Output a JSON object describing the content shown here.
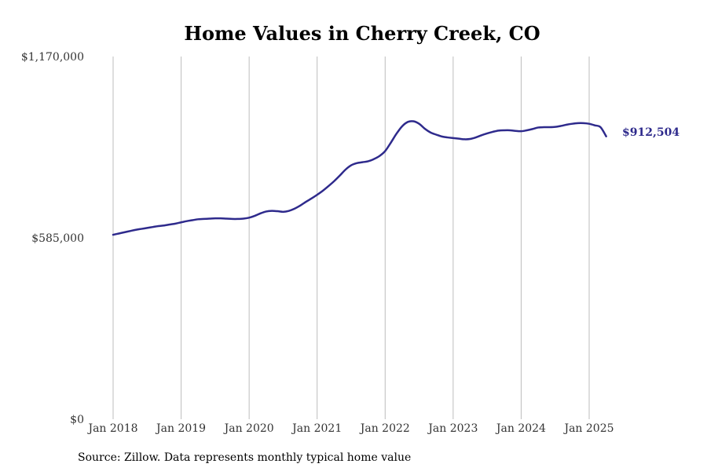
{
  "chart_data": {
    "type": "line",
    "title": "Home Values in Cherry Creek, CO",
    "xlabel": "",
    "ylabel": "",
    "x_start": "2018-01",
    "x_ticks": [
      {
        "date": "2018-01",
        "label": "Jan 2018"
      },
      {
        "date": "2019-01",
        "label": "Jan 2019"
      },
      {
        "date": "2020-01",
        "label": "Jan 2020"
      },
      {
        "date": "2021-01",
        "label": "Jan 2021"
      },
      {
        "date": "2022-01",
        "label": "Jan 2022"
      },
      {
        "date": "2023-01",
        "label": "Jan 2023"
      },
      {
        "date": "2024-01",
        "label": "Jan 2024"
      },
      {
        "date": "2025-01",
        "label": "Jan 2025"
      }
    ],
    "y_ticks": [
      {
        "value": 0,
        "label": "$0"
      },
      {
        "value": 585000,
        "label": "$585,000"
      },
      {
        "value": 1170000,
        "label": "$1,170,000"
      }
    ],
    "ylim": [
      0,
      1170000
    ],
    "xlim": [
      "2018-01",
      "2025-05"
    ],
    "grid": "vertical",
    "end_label": "$912,504",
    "series": [
      {
        "color": "#2e2a8c",
        "x": [
          "2018-01",
          "2018-02",
          "2018-03",
          "2018-04",
          "2018-05",
          "2018-06",
          "2018-07",
          "2018-08",
          "2018-09",
          "2018-10",
          "2018-11",
          "2018-12",
          "2019-01",
          "2019-02",
          "2019-03",
          "2019-04",
          "2019-05",
          "2019-06",
          "2019-07",
          "2019-08",
          "2019-09",
          "2019-10",
          "2019-11",
          "2019-12",
          "2020-01",
          "2020-02",
          "2020-03",
          "2020-04",
          "2020-05",
          "2020-06",
          "2020-07",
          "2020-08",
          "2020-09",
          "2020-10",
          "2020-11",
          "2020-12",
          "2021-01",
          "2021-02",
          "2021-03",
          "2021-04",
          "2021-05",
          "2021-06",
          "2021-07",
          "2021-08",
          "2021-09",
          "2021-10",
          "2021-11",
          "2021-12",
          "2022-01",
          "2022-02",
          "2022-03",
          "2022-04",
          "2022-05",
          "2022-06",
          "2022-07",
          "2022-08",
          "2022-09",
          "2022-10",
          "2022-11",
          "2022-12",
          "2023-01",
          "2023-02",
          "2023-03",
          "2023-04",
          "2023-05",
          "2023-06",
          "2023-07",
          "2023-08",
          "2023-09",
          "2023-10",
          "2023-11",
          "2023-12",
          "2024-01",
          "2024-02",
          "2024-03",
          "2024-04",
          "2024-05",
          "2024-06",
          "2024-07",
          "2024-08",
          "2024-09",
          "2024-10",
          "2024-11",
          "2024-12",
          "2025-01",
          "2025-02",
          "2025-03",
          "2025-04"
        ],
        "values": [
          595000,
          599000,
          603000,
          607000,
          611000,
          614000,
          617000,
          620000,
          623000,
          625000,
          628000,
          631000,
          635000,
          639000,
          642000,
          645000,
          646000,
          647000,
          648000,
          648000,
          647000,
          646000,
          646000,
          647000,
          650000,
          656000,
          664000,
          670000,
          672000,
          671000,
          669000,
          672000,
          679000,
          689000,
          701000,
          712000,
          724000,
          737000,
          752000,
          768000,
          786000,
          805000,
          819000,
          826000,
          829000,
          832000,
          839000,
          849000,
          865000,
          892000,
          921000,
          945000,
          959000,
          961000,
          953000,
          937000,
          925000,
          918000,
          912000,
          909000,
          907000,
          905000,
          903000,
          904000,
          909000,
          916000,
          922000,
          927000,
          931000,
          932000,
          932000,
          930000,
          929000,
          932000,
          936000,
          941000,
          942000,
          942000,
          943000,
          946000,
          950000,
          953000,
          955000,
          955000,
          953000,
          948000,
          942000,
          912504
        ]
      }
    ]
  },
  "source_note": "Source: Zillow. Data represents monthly typical home value"
}
